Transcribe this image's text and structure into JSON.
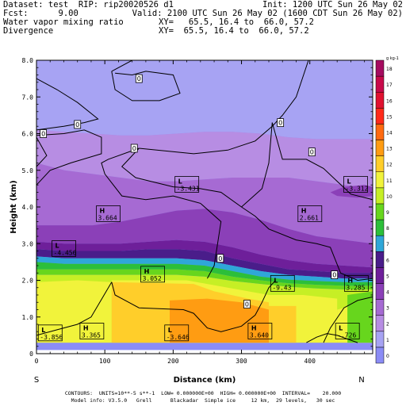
{
  "header": {
    "line1_left": "Dataset: test  RIP: rip20020526 d1",
    "line1_right": "Init: 1200 UTC Sun 26 May 02",
    "line2_left": "Fcst:      9.00",
    "line2_right": "Valid: 2100 UTC Sun 26 May 02 (1600 CDT Sun 26 May 02)",
    "line3_left": "Water vapor mixing ratio",
    "line3_right": "XY=   65.5, 16.4 to  66.0, 57.2",
    "line4_left": "Divergence",
    "line4_right": "XY=  65.5, 16.4 to  66.0, 57.2"
  },
  "footer": {
    "line1": "CONTOURS:  UNITS=10**-5 s**-1  LOW= 0.000000E+00  HIGH= 0.000000E+00  INTERVAL=    20.000",
    "line2": "Model info: V3.5.0   Grell      Blackadar  Simple ice     12 km,  29 levels,   30 sec"
  },
  "chart_data": {
    "type": "heatmap",
    "xlabel": "Distance (km)",
    "ylabel": "Height (km)",
    "x_ticks": [
      "0",
      "100",
      "200",
      "300",
      "400"
    ],
    "x_tick_values": [
      0,
      100,
      200,
      300,
      400
    ],
    "y_ticks": [
      "0",
      "1.0",
      "2.0",
      "3.0",
      "4.0",
      "5.0",
      "6.0",
      "7.0",
      "8.0"
    ],
    "y_tick_values": [
      0,
      1,
      2,
      3,
      4,
      5,
      6,
      7,
      8
    ],
    "xlim": [
      0,
      492
    ],
    "ylim": [
      0,
      8
    ],
    "x_end_labels": {
      "left": "S",
      "right": "N"
    },
    "colorbar": {
      "unit_label": "g kg-1",
      "levels": [
        "0",
        "1",
        "2",
        "3",
        "4",
        "5",
        "6",
        "7",
        "8",
        "9",
        "10",
        "11",
        "12",
        "13",
        "14",
        "15",
        "16",
        "17",
        "18"
      ],
      "colors": [
        "#8b8cf6",
        "#a7a3f3",
        "#b78de3",
        "#a66ad3",
        "#8b40b8",
        "#6e1f9a",
        "#4a1d8a",
        "#2fa7d8",
        "#2cbf3a",
        "#67d61d",
        "#c6ef25",
        "#f1f33b",
        "#ffce2a",
        "#ff9c12",
        "#ff6a10",
        "#ff2a1a",
        "#e01230",
        "#c80a4a",
        "#a50c60"
      ]
    },
    "field_bands": [
      {
        "level": 1,
        "bottom": [
          6.1,
          6.05,
          6.0,
          5.95,
          5.95,
          6.0,
          6.05,
          6.05,
          6.0,
          5.9,
          5.85,
          5.85,
          5.85
        ],
        "top": [
          8,
          8,
          8,
          8,
          8,
          8,
          8,
          8,
          8,
          8,
          8,
          8,
          8
        ]
      },
      {
        "level": 2,
        "bottom": [
          5.2,
          5.0,
          4.9,
          4.8,
          4.7,
          4.7,
          4.75,
          4.8,
          4.8,
          4.8,
          4.7,
          4.6,
          4.5
        ],
        "top": [
          6.1,
          6.05,
          6.0,
          5.95,
          5.95,
          6.0,
          6.05,
          6.05,
          6.0,
          5.9,
          5.85,
          5.85,
          5.85
        ]
      },
      {
        "level": 3,
        "bottom": [
          3.5,
          3.5,
          3.5,
          3.6,
          3.75,
          3.9,
          3.95,
          3.85,
          3.65,
          3.4,
          3.2,
          3.1,
          3.0
        ],
        "top": [
          5.2,
          5.0,
          4.9,
          4.8,
          4.7,
          4.7,
          4.75,
          4.8,
          4.8,
          4.8,
          4.7,
          4.6,
          4.5
        ]
      },
      {
        "level": 4,
        "bottom": [
          3.05,
          3.0,
          3.0,
          3.0,
          3.05,
          3.1,
          3.05,
          2.9,
          2.7,
          2.55,
          2.45,
          2.4,
          2.35
        ],
        "top": [
          3.5,
          3.5,
          3.5,
          3.6,
          3.75,
          3.9,
          3.95,
          3.85,
          3.65,
          3.4,
          3.2,
          3.1,
          3.0
        ]
      },
      {
        "level": 5,
        "bottom": [
          2.85,
          2.8,
          2.8,
          2.8,
          2.85,
          2.85,
          2.8,
          2.6,
          2.45,
          2.3,
          2.25,
          2.2,
          2.2
        ],
        "top": [
          3.05,
          3.0,
          3.0,
          3.0,
          3.05,
          3.1,
          3.05,
          2.9,
          2.7,
          2.55,
          2.45,
          2.4,
          2.35
        ]
      },
      {
        "level": 6,
        "bottom": [
          2.65,
          2.6,
          2.6,
          2.6,
          2.6,
          2.6,
          2.55,
          2.4,
          2.25,
          2.15,
          2.1,
          2.05,
          2.05
        ],
        "top": [
          2.85,
          2.8,
          2.8,
          2.8,
          2.85,
          2.85,
          2.8,
          2.6,
          2.45,
          2.3,
          2.25,
          2.2,
          2.2
        ]
      },
      {
        "level": 7,
        "bottom": [
          2.5,
          2.45,
          2.45,
          2.45,
          2.45,
          2.45,
          2.4,
          2.25,
          2.1,
          2.02,
          1.98,
          1.95,
          1.95
        ],
        "top": [
          2.65,
          2.6,
          2.6,
          2.6,
          2.6,
          2.6,
          2.55,
          2.4,
          2.25,
          2.15,
          2.1,
          2.05,
          2.05
        ]
      },
      {
        "level": 8,
        "bottom": [
          2.3,
          2.3,
          2.3,
          2.3,
          2.3,
          2.3,
          2.25,
          2.1,
          2.0,
          1.92,
          1.88,
          1.85,
          1.85
        ],
        "top": [
          2.5,
          2.45,
          2.45,
          2.45,
          2.45,
          2.45,
          2.4,
          2.25,
          2.1,
          2.02,
          1.98,
          1.95,
          1.95
        ]
      },
      {
        "level": 9,
        "bottom": [
          2.15,
          2.15,
          2.15,
          2.15,
          2.15,
          2.15,
          2.1,
          1.98,
          1.9,
          1.82,
          1.78,
          1.75,
          1.75
        ],
        "top": [
          2.3,
          2.3,
          2.3,
          2.3,
          2.3,
          2.3,
          2.25,
          2.1,
          2.0,
          1.92,
          1.88,
          1.85,
          1.85
        ]
      },
      {
        "level": 10,
        "bottom": [
          0.3,
          0.3,
          0.3,
          0.3,
          0.3,
          0.3,
          0.3,
          0.3,
          0.3,
          0.3,
          0.3,
          0.3,
          0.3
        ],
        "top": [
          2.15,
          2.15,
          2.15,
          2.15,
          2.15,
          2.15,
          2.1,
          1.98,
          1.9,
          1.82,
          1.78,
          1.75,
          1.75
        ]
      }
    ],
    "field_x": [
      0,
      41,
      82,
      123,
      164,
      205,
      246,
      287,
      328,
      369,
      410,
      451,
      492
    ],
    "field_patches": [
      {
        "level": 11,
        "x": [
          0,
          0,
          60,
          110,
          110,
          0
        ],
        "y": [
          0.3,
          1.95,
          2.0,
          1.95,
          0.3,
          0.3
        ]
      },
      {
        "level": 11,
        "x": [
          110,
          110,
          220,
          250,
          340,
          340,
          110
        ],
        "y": [
          0.3,
          2.0,
          2.0,
          1.9,
          1.6,
          0.3,
          0.3
        ]
      },
      {
        "level": 12,
        "x": [
          110,
          110,
          230,
          260,
          310,
          340,
          340,
          110
        ],
        "y": [
          0.3,
          1.95,
          1.9,
          1.7,
          1.5,
          1.4,
          0.3,
          0.3
        ]
      },
      {
        "level": 13,
        "x": [
          195,
          195,
          250,
          300,
          320,
          340,
          340,
          195
        ],
        "y": [
          0.3,
          1.45,
          1.5,
          1.4,
          1.3,
          1.2,
          0.3,
          0.3
        ]
      },
      {
        "level": 11,
        "x": [
          340,
          340,
          390,
          440,
          440,
          340
        ],
        "y": [
          0.3,
          1.6,
          1.6,
          1.5,
          0.3,
          0.3
        ]
      },
      {
        "level": 12,
        "x": [
          340,
          340,
          380,
          380,
          340
        ],
        "y": [
          0.3,
          1.3,
          1.3,
          0.3,
          0.3
        ]
      },
      {
        "level": 11,
        "x": [
          440,
          440,
          480,
          492,
          492,
          440
        ],
        "y": [
          0.3,
          1.2,
          1.4,
          1.5,
          0.3,
          0.3
        ]
      },
      {
        "level": 9,
        "x": [
          455,
          455,
          492,
          492,
          455
        ],
        "y": [
          0.3,
          1.6,
          1.7,
          0.3,
          0.3
        ]
      },
      {
        "level": 3,
        "x": [
          160,
          180,
          230,
          270,
          320,
          330,
          290,
          220,
          170,
          160
        ],
        "y": [
          4.3,
          4.55,
          4.65,
          4.6,
          4.6,
          4.4,
          4.3,
          4.2,
          4.25,
          4.3
        ]
      },
      {
        "level": 4,
        "x": [
          430,
          450,
          480,
          492,
          492,
          470,
          440,
          430
        ],
        "y": [
          4.4,
          4.55,
          4.6,
          4.55,
          4.3,
          4.25,
          4.3,
          4.4
        ]
      }
    ],
    "terrain_y": 0.3,
    "contour_labels": [
      {
        "text": "0",
        "x": 150,
        "y": 7.5
      },
      {
        "text": "0",
        "x": 60,
        "y": 6.25
      },
      {
        "text": "0",
        "x": 10,
        "y": 6.0
      },
      {
        "text": "0",
        "x": 357,
        "y": 6.3
      },
      {
        "text": "0",
        "x": 143,
        "y": 5.6
      },
      {
        "text": "0",
        "x": 403,
        "y": 5.5
      },
      {
        "text": "0",
        "x": 269,
        "y": 2.6
      },
      {
        "text": "0",
        "x": 436,
        "y": 2.15
      },
      {
        "text": "0",
        "x": 308,
        "y": 1.35
      }
    ],
    "extrema": [
      {
        "type": "L",
        "value": "-3.431",
        "x": 205,
        "y": 4.4
      },
      {
        "type": "L",
        "value": "-3.312",
        "x": 452,
        "y": 4.4
      },
      {
        "type": "H",
        "value": "3.664",
        "x": 90,
        "y": 3.6
      },
      {
        "type": "H",
        "value": "2.661",
        "x": 385,
        "y": 3.6
      },
      {
        "type": "L",
        "value": "-4.456",
        "x": 25,
        "y": 2.65
      },
      {
        "type": "H",
        "value": "3.052",
        "x": 155,
        "y": 1.95
      },
      {
        "type": "L",
        "value": "-9.43",
        "x": 345,
        "y": 1.7
      },
      {
        "type": "H",
        "value": "3.285",
        "x": 453,
        "y": 1.7
      },
      {
        "type": "L",
        "value": "-3.856",
        "x": 5,
        "y": 0.35
      },
      {
        "type": "H",
        "value": "3.365",
        "x": 66,
        "y": 0.4
      },
      {
        "type": "L",
        "value": "-3.646",
        "x": 190,
        "y": 0.35
      },
      {
        "type": "H",
        "value": "3.640",
        "x": 312,
        "y": 0.4
      },
      {
        "type": "L",
        "value": "-.726",
        "x": 440,
        "y": 0.4
      }
    ],
    "contours": [
      [
        [
          110,
          7.7
        ],
        [
          140,
          8.0
        ]
      ],
      [
        [
          110,
          7.7
        ],
        [
          115,
          7.2
        ],
        [
          140,
          6.9
        ],
        [
          180,
          6.9
        ],
        [
          210,
          7.1
        ],
        [
          200,
          7.6
        ],
        [
          160,
          7.7
        ],
        [
          140,
          7.6
        ],
        [
          115,
          7.65
        ]
      ],
      [
        [
          0,
          6.1
        ],
        [
          40,
          6.2
        ],
        [
          70,
          6.3
        ],
        [
          90,
          6.4
        ],
        [
          60,
          6.85
        ],
        [
          30,
          7.2
        ],
        [
          0,
          7.5
        ]
      ],
      [
        [
          0,
          5.1
        ],
        [
          15,
          5.4
        ],
        [
          0,
          5.9
        ]
      ],
      [
        [
          0,
          4.6
        ],
        [
          20,
          5.0
        ],
        [
          50,
          5.2
        ],
        [
          95,
          5.45
        ],
        [
          95,
          5.9
        ],
        [
          70,
          6.1
        ],
        [
          40,
          6.0
        ],
        [
          0,
          5.95
        ]
      ],
      [
        [
          150,
          5.6
        ],
        [
          230,
          5.45
        ],
        [
          280,
          5.55
        ],
        [
          320,
          5.8
        ],
        [
          345,
          6.2
        ],
        [
          360,
          6.5
        ],
        [
          380,
          7.0
        ],
        [
          398,
          8.0
        ]
      ],
      [
        [
          150,
          5.6
        ],
        [
          105,
          5.3
        ],
        [
          95,
          5.2
        ],
        [
          100,
          4.9
        ],
        [
          125,
          4.3
        ],
        [
          160,
          4.2
        ],
        [
          200,
          4.3
        ],
        [
          240,
          4.1
        ],
        [
          270,
          3.6
        ],
        [
          265,
          3.0
        ],
        [
          260,
          2.4
        ],
        [
          250,
          2.05
        ]
      ],
      [
        [
          150,
          5.6
        ],
        [
          125,
          5.1
        ],
        [
          145,
          4.8
        ],
        [
          200,
          4.55
        ],
        [
          240,
          4.5
        ],
        [
          270,
          4.4
        ],
        [
          300,
          4.0
        ],
        [
          320,
          3.75
        ],
        [
          340,
          3.4
        ],
        [
          380,
          3.1
        ],
        [
          410,
          3.0
        ],
        [
          430,
          2.9
        ],
        [
          445,
          2.2
        ],
        [
          470,
          2.0
        ],
        [
          492,
          2.05
        ]
      ],
      [
        [
          345,
          6.3
        ],
        [
          360,
          5.3
        ],
        [
          395,
          5.3
        ],
        [
          420,
          5.05
        ],
        [
          440,
          4.7
        ],
        [
          460,
          4.35
        ],
        [
          492,
          4.2
        ]
      ],
      [
        [
          300,
          4.0
        ],
        [
          330,
          4.5
        ],
        [
          340,
          5.2
        ],
        [
          345,
          6.3
        ]
      ],
      [
        [
          110,
          1.95
        ],
        [
          115,
          1.6
        ],
        [
          150,
          1.25
        ],
        [
          215,
          1.2
        ],
        [
          230,
          1.1
        ],
        [
          250,
          0.7
        ],
        [
          270,
          0.6
        ],
        [
          300,
          0.75
        ],
        [
          320,
          1.05
        ],
        [
          330,
          1.4
        ],
        [
          340,
          1.8
        ],
        [
          350,
          2.0
        ]
      ],
      [
        [
          0,
          0.5
        ],
        [
          30,
          0.65
        ],
        [
          60,
          0.8
        ],
        [
          80,
          1.0
        ],
        [
          110,
          1.95
        ]
      ],
      [
        [
          420,
          0.3
        ],
        [
          430,
          0.7
        ],
        [
          450,
          1.25
        ],
        [
          470,
          1.45
        ],
        [
          492,
          1.55
        ]
      ],
      [
        [
          395,
          0.3
        ],
        [
          410,
          0.45
        ],
        [
          425,
          0.55
        ],
        [
          440,
          0.5
        ],
        [
          455,
          0.4
        ],
        [
          470,
          0.3
        ]
      ]
    ]
  }
}
